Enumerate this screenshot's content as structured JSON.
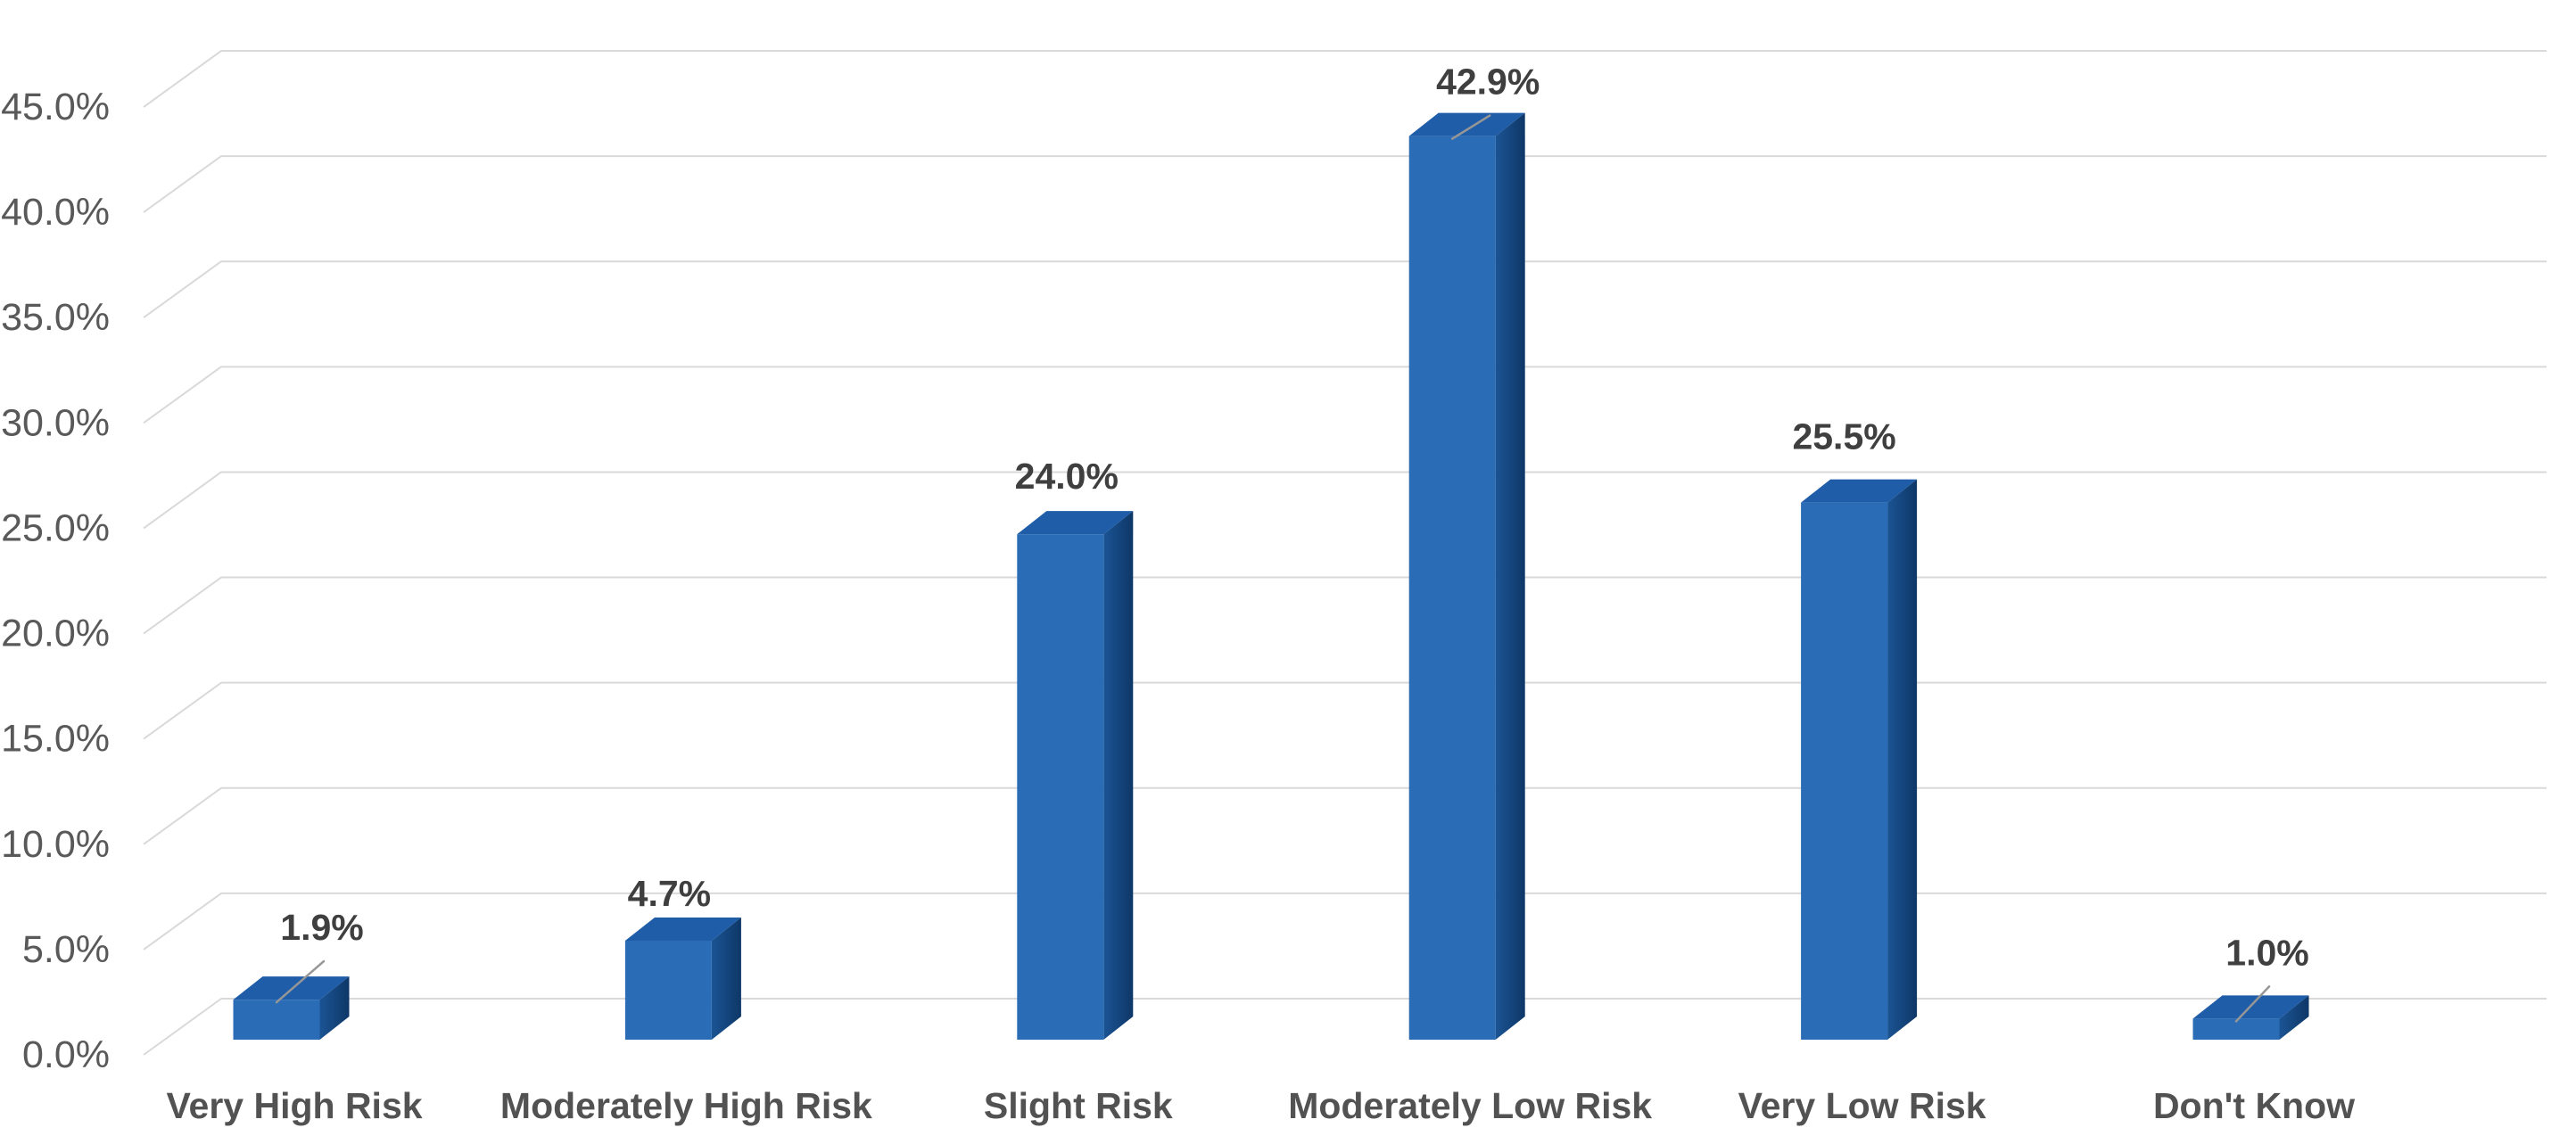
{
  "chart_data": {
    "type": "bar",
    "style": "3d-column",
    "title": "",
    "xlabel": "",
    "ylabel": "",
    "legend": false,
    "grid": true,
    "categories": [
      "Very High Risk",
      "Moderately High Risk",
      "Slight Risk",
      "Moderately Low Risk",
      "Very Low Risk",
      "Don't Know"
    ],
    "values": [
      1.9,
      4.7,
      24.0,
      42.9,
      25.5,
      1.0
    ],
    "data_labels": [
      "1.9%",
      "4.7%",
      "24.0%",
      "42.9%",
      "25.5%",
      "1.0%"
    ],
    "leader_lines": [
      true,
      false,
      false,
      true,
      false,
      true
    ],
    "y_ticks": [
      "0.0%",
      "5.0%",
      "10.0%",
      "15.0%",
      "20.0%",
      "25.0%",
      "30.0%",
      "35.0%",
      "40.0%",
      "45.0%"
    ],
    "ylim": [
      0,
      45
    ],
    "y_tick_step": 5,
    "colors": {
      "bar_front": "#2B6CB6",
      "bar_top": "#1F5DA9",
      "bar_side_light": "#1B5494",
      "bar_side_dark": "#0E3767",
      "gridline": "#D9D9D9",
      "tick_text": "#595959",
      "category_text": "#525252",
      "data_label_text": "#3F3F3F",
      "leader_line": "#969696",
      "background": "#FFFFFF"
    }
  }
}
